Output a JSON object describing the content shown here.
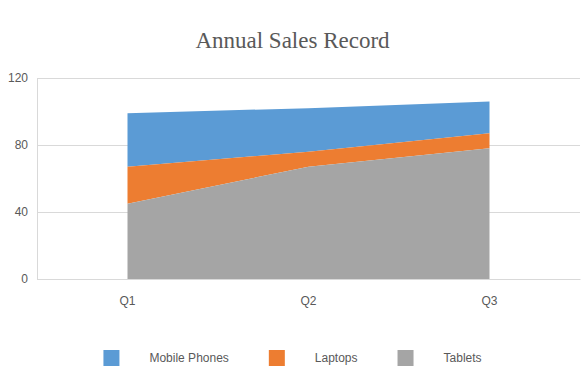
{
  "chart_data": {
    "type": "area",
    "title": "Annual Sales Record",
    "categories": [
      "Q1",
      "Q2",
      "Q3"
    ],
    "series": [
      {
        "name": "Mobile Phones",
        "color": "#5b9bd5",
        "values": [
          32,
          26,
          19
        ]
      },
      {
        "name": "Laptops",
        "color": "#ed7d31",
        "values": [
          22,
          9,
          9
        ]
      },
      {
        "name": "Tablets",
        "color": "#a5a5a5",
        "values": [
          45,
          67,
          78
        ]
      }
    ],
    "stacked": true,
    "ylim": [
      0,
      120
    ],
    "yticks": [
      0,
      40,
      80,
      120
    ],
    "grid": true,
    "legend": "bottom"
  }
}
